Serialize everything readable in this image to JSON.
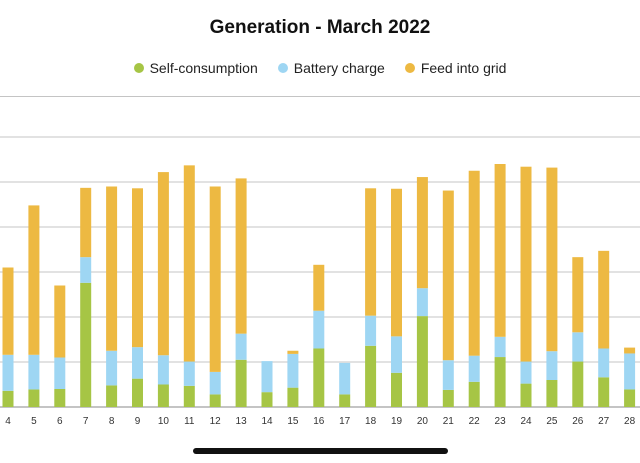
{
  "chart_data": {
    "type": "bar",
    "stacked": true,
    "title": "Generation - March 2022",
    "xlabel": "",
    "ylabel": "",
    "grid": true,
    "legend_position": "top-center",
    "categories": [
      "4",
      "5",
      "6",
      "7",
      "8",
      "9",
      "10",
      "11",
      "12",
      "13",
      "14",
      "15",
      "16",
      "17",
      "18",
      "19",
      "20",
      "21",
      "22",
      "23",
      "24",
      "25",
      "26",
      "27",
      "28"
    ],
    "series": [
      {
        "name": "Self-consumption",
        "color": "#a6c545",
        "values": [
          3.6,
          3.9,
          4.0,
          27.6,
          4.8,
          6.3,
          5.0,
          4.7,
          2.8,
          10.5,
          3.3,
          4.3,
          13.0,
          2.8,
          13.6,
          7.6,
          20.2,
          3.8,
          5.6,
          11.1,
          5.2,
          6.0,
          10.1,
          6.6,
          3.9
        ]
      },
      {
        "name": "Battery charge",
        "color": "#9ed6f3",
        "values": [
          8.0,
          7.7,
          7.0,
          5.7,
          7.7,
          7.0,
          6.5,
          5.4,
          5.0,
          5.8,
          6.9,
          7.5,
          8.4,
          7.0,
          6.7,
          8.1,
          6.2,
          6.6,
          5.8,
          4.5,
          4.9,
          6.4,
          6.5,
          6.4,
          8.0
        ]
      },
      {
        "name": "Feed into grid",
        "color": "#edb942",
        "values": [
          19.4,
          33.2,
          16.0,
          15.4,
          36.5,
          35.3,
          40.7,
          43.6,
          41.2,
          34.5,
          0.0,
          0.7,
          10.2,
          0.0,
          28.3,
          32.8,
          24.7,
          37.7,
          41.1,
          38.4,
          43.3,
          40.8,
          16.7,
          21.7,
          1.3
        ]
      }
    ],
    "ylim": [
      0,
      69
    ]
  }
}
